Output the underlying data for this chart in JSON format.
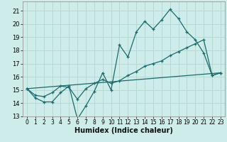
{
  "xlabel": "Humidex (Indice chaleur)",
  "bg_color": "#ceecea",
  "grid_color": "#b8d8d6",
  "line_color": "#1a6b6b",
  "xlim": [
    -0.5,
    23.5
  ],
  "ylim": [
    13,
    21.7
  ],
  "yticks": [
    13,
    14,
    15,
    16,
    17,
    18,
    19,
    20,
    21
  ],
  "xticks": [
    0,
    1,
    2,
    3,
    4,
    5,
    6,
    7,
    8,
    9,
    10,
    11,
    12,
    13,
    14,
    15,
    16,
    17,
    18,
    19,
    20,
    21,
    22,
    23
  ],
  "series1_x": [
    0,
    1,
    2,
    3,
    4,
    5,
    6,
    7,
    8,
    9,
    10,
    11,
    12,
    13,
    14,
    15,
    16,
    17,
    18,
    19,
    20,
    21,
    22,
    23
  ],
  "series1_y": [
    15.1,
    14.4,
    14.1,
    14.1,
    14.8,
    15.3,
    12.8,
    13.8,
    14.9,
    16.3,
    15.0,
    18.4,
    17.5,
    19.4,
    20.2,
    19.6,
    20.3,
    21.1,
    20.4,
    19.4,
    18.8,
    17.8,
    16.1,
    16.3
  ],
  "series2_x": [
    0,
    1,
    2,
    3,
    4,
    5,
    6,
    7,
    8,
    9,
    10,
    11,
    12,
    13,
    14,
    15,
    16,
    17,
    18,
    19,
    20,
    21,
    22,
    23
  ],
  "series2_y": [
    15.1,
    14.6,
    14.5,
    14.8,
    15.3,
    15.2,
    14.3,
    15.1,
    15.5,
    15.8,
    15.5,
    15.7,
    16.1,
    16.4,
    16.8,
    17.0,
    17.2,
    17.6,
    17.9,
    18.2,
    18.5,
    18.8,
    16.1,
    16.3
  ],
  "series3_x": [
    0,
    23
  ],
  "series3_y": [
    15.1,
    16.3
  ]
}
